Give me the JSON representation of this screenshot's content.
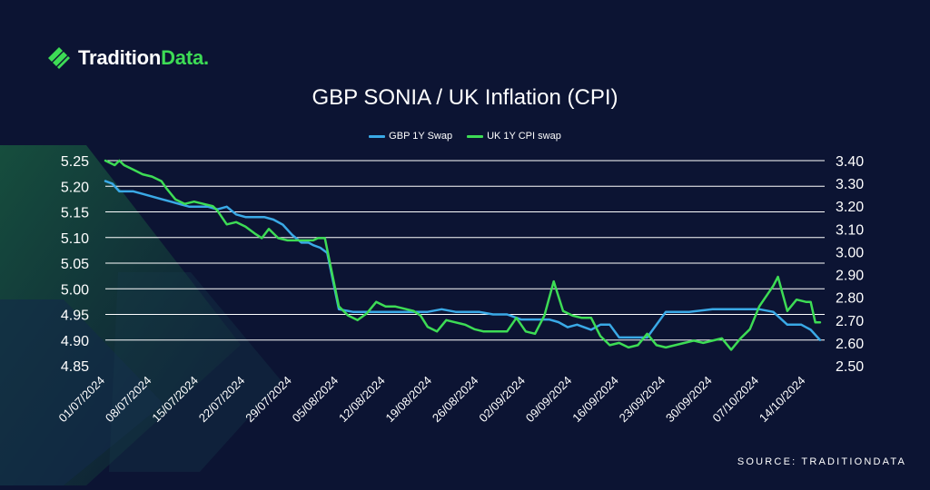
{
  "brand": {
    "name_main": "Tradition",
    "name_accent": "Data.",
    "accent_color": "#3ddc55"
  },
  "source": "SOURCE: TRADITIONDATA",
  "chart_data": {
    "type": "line",
    "title": "GBP SONIA / UK Inflation (CPI)",
    "legend_position": "top-center",
    "grid": true,
    "categories": [
      "01/07/2024",
      "08/07/2024",
      "15/07/2024",
      "22/07/2024",
      "29/07/2024",
      "05/08/2024",
      "12/08/2024",
      "19/08/2024",
      "26/08/2024",
      "02/09/2024",
      "09/09/2024",
      "16/09/2024",
      "23/09/2024",
      "30/09/2024",
      "07/10/2024",
      "14/10/2024"
    ],
    "x_range": [
      0,
      15.4
    ],
    "left_axis": {
      "ticks": [
        "5.25",
        "5.20",
        "5.15",
        "5.10",
        "5.05",
        "5.00",
        "4.95",
        "4.90",
        "4.85"
      ],
      "ylim": [
        4.85,
        5.25
      ]
    },
    "right_axis": {
      "ticks": [
        "3.40",
        "3.30",
        "3.20",
        "3.10",
        "3.00",
        "2.90",
        "2.80",
        "2.70",
        "2.60",
        "2.50"
      ],
      "ylim": [
        2.5,
        3.4
      ]
    },
    "series": [
      {
        "name": "GBP 1Y Swap",
        "axis": "left",
        "color": "#3aa9e6",
        "x": [
          0,
          0.15,
          0.3,
          0.6,
          0.8,
          1,
          1.2,
          1.4,
          1.6,
          1.8,
          2,
          2.2,
          2.4,
          2.6,
          2.8,
          3,
          3.2,
          3.4,
          3.6,
          3.8,
          4,
          4.2,
          4.35,
          4.45,
          4.6,
          4.75,
          5,
          5.3,
          5.6,
          5.9,
          6.1,
          6.3,
          6.6,
          6.9,
          7.2,
          7.5,
          8,
          8.3,
          8.6,
          8.9,
          9.2,
          9.5,
          9.7,
          9.9,
          10.1,
          10.4,
          10.6,
          10.8,
          11,
          11.2,
          11.4,
          11.6,
          12,
          12.5,
          13,
          13.5,
          14,
          14.3,
          14.6,
          14.9,
          15.1,
          15.3
        ],
        "values": [
          5.21,
          5.205,
          5.19,
          5.19,
          5.185,
          5.18,
          5.175,
          5.17,
          5.165,
          5.16,
          5.16,
          5.16,
          5.155,
          5.16,
          5.145,
          5.14,
          5.14,
          5.14,
          5.135,
          5.125,
          5.105,
          5.09,
          5.09,
          5.085,
          5.08,
          5.07,
          4.96,
          4.955,
          4.955,
          4.955,
          4.955,
          4.955,
          4.955,
          4.955,
          4.96,
          4.955,
          4.955,
          4.95,
          4.95,
          4.94,
          4.94,
          4.94,
          4.935,
          4.925,
          4.93,
          4.92,
          4.93,
          4.93,
          4.905,
          4.905,
          4.905,
          4.905,
          4.955,
          4.955,
          4.96,
          4.96,
          4.96,
          4.955,
          4.93,
          4.93,
          4.92,
          4.9
        ]
      },
      {
        "name": "UK 1Y CPI swap",
        "axis": "right",
        "color": "#3ddc55",
        "x": [
          0,
          0.1,
          0.2,
          0.3,
          0.4,
          0.6,
          0.8,
          1,
          1.2,
          1.3,
          1.5,
          1.7,
          1.9,
          2.1,
          2.3,
          2.4,
          2.6,
          2.8,
          3,
          3.2,
          3.35,
          3.5,
          3.7,
          3.9,
          4.1,
          4.3,
          4.45,
          4.55,
          4.6,
          4.7,
          5,
          5.2,
          5.4,
          5.6,
          5.8,
          6,
          6.2,
          6.4,
          6.6,
          6.75,
          6.9,
          7.1,
          7.3,
          7.5,
          7.7,
          7.9,
          8.1,
          8.4,
          8.6,
          8.8,
          9,
          9.2,
          9.4,
          9.6,
          9.8,
          10,
          10.2,
          10.4,
          10.6,
          10.8,
          11,
          11.2,
          11.4,
          11.6,
          11.8,
          12,
          12.2,
          12.4,
          12.6,
          12.8,
          13,
          13.2,
          13.4,
          13.6,
          13.8,
          14,
          14.1,
          14.2,
          14.3,
          14.4,
          14.6,
          14.8,
          15,
          15.1,
          15.2,
          15.3
        ],
        "values": [
          3.4,
          3.39,
          3.38,
          3.4,
          3.38,
          3.36,
          3.34,
          3.33,
          3.31,
          3.28,
          3.23,
          3.21,
          3.22,
          3.21,
          3.2,
          3.18,
          3.12,
          3.13,
          3.11,
          3.08,
          3.06,
          3.1,
          3.06,
          3.05,
          3.05,
          3.05,
          3.05,
          3.06,
          3.06,
          3.06,
          2.76,
          2.72,
          2.7,
          2.73,
          2.78,
          2.76,
          2.76,
          2.75,
          2.74,
          2.72,
          2.67,
          2.65,
          2.7,
          2.69,
          2.68,
          2.66,
          2.65,
          2.65,
          2.65,
          2.71,
          2.65,
          2.64,
          2.72,
          2.87,
          2.74,
          2.72,
          2.71,
          2.71,
          2.63,
          2.59,
          2.6,
          2.58,
          2.59,
          2.64,
          2.59,
          2.58,
          2.59,
          2.6,
          2.61,
          2.6,
          2.61,
          2.62,
          2.57,
          2.62,
          2.66,
          2.76,
          2.79,
          2.82,
          2.85,
          2.89,
          2.74,
          2.79,
          2.78,
          2.78,
          2.69,
          2.69
        ]
      }
    ]
  }
}
